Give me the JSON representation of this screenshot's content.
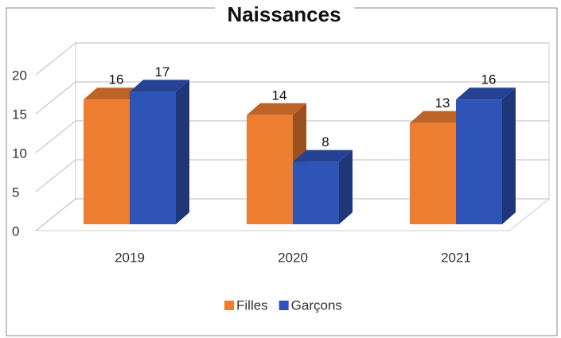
{
  "chart_data": {
    "type": "bar3d",
    "title": "Naissances",
    "categories": [
      "2019",
      "2020",
      "2021"
    ],
    "series": [
      {
        "name": "Filles",
        "color": "#ed7d31",
        "values": [
          16,
          14,
          13
        ]
      },
      {
        "name": "Garçons",
        "color": "#2f54b8",
        "values": [
          17,
          8,
          16
        ]
      }
    ],
    "ylim": [
      0,
      20
    ],
    "yticks": [
      0,
      5,
      10,
      15,
      20
    ],
    "grid": true,
    "legend": "bottom"
  }
}
